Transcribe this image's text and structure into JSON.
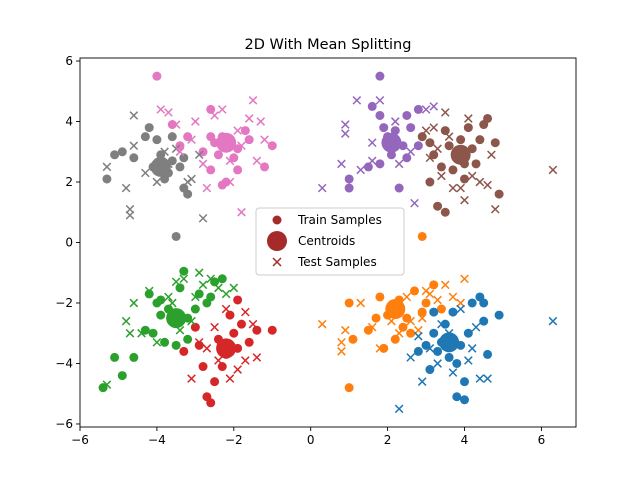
{
  "chart_data": {
    "type": "scatter",
    "title": "2D With Mean Splitting",
    "xlabel": "",
    "ylabel": "",
    "xlim": [
      -6,
      6.9
    ],
    "ylim": [
      -6.1,
      6.1
    ],
    "xticks": [
      -6,
      -4,
      -2,
      0,
      2,
      4,
      6
    ],
    "yticks": [
      -6,
      -4,
      -2,
      0,
      2,
      4,
      6
    ],
    "grid": false,
    "legend": {
      "position": "center",
      "entries": [
        "Train Samples",
        "Centroids",
        "Test Samples"
      ],
      "color": "#a52a2a"
    },
    "clusters": [
      {
        "color": "#7f7f7f",
        "centroid": [
          -3.9,
          2.5
        ],
        "train": [
          [
            -5.3,
            2.1
          ],
          [
            -5.1,
            2.9
          ],
          [
            -4.9,
            3.0
          ],
          [
            -4.6,
            2.8
          ],
          [
            -4.3,
            3.5
          ],
          [
            -4.2,
            3.8
          ],
          [
            -4.0,
            3.4
          ],
          [
            -3.9,
            2.9
          ],
          [
            -3.8,
            2.1
          ],
          [
            -3.6,
            3.5
          ],
          [
            -3.6,
            2.7
          ],
          [
            -3.4,
            2.5
          ],
          [
            -3.3,
            2.8
          ],
          [
            -3.2,
            1.6
          ],
          [
            -3.5,
            0.2
          ],
          [
            -3.3,
            1.8
          ],
          [
            -4.1,
            2.5
          ],
          [
            -3.7,
            2.3
          ]
        ],
        "test": [
          [
            -5.3,
            2.5
          ],
          [
            -4.8,
            1.8
          ],
          [
            -4.7,
            1.1
          ],
          [
            -4.7,
            0.9
          ],
          [
            -4.6,
            3.2
          ],
          [
            -4.6,
            4.2
          ],
          [
            -4.3,
            2.3
          ],
          [
            -4.0,
            2.0
          ],
          [
            -3.7,
            2.6
          ],
          [
            -3.5,
            3.1
          ],
          [
            -3.2,
            2.0
          ],
          [
            -2.9,
            2.9
          ],
          [
            -2.8,
            0.8
          ],
          [
            -3.1,
            2.1
          ],
          [
            -3.8,
            3.0
          ]
        ]
      },
      {
        "color": "#e377c2",
        "centroid": [
          -2.2,
          3.3
        ],
        "train": [
          [
            -4.0,
            5.5
          ],
          [
            -3.6,
            3.9
          ],
          [
            -3.4,
            3.2
          ],
          [
            -3.2,
            3.5
          ],
          [
            -2.8,
            3.0
          ],
          [
            -2.6,
            4.4
          ],
          [
            -2.6,
            3.5
          ],
          [
            -2.5,
            3.3
          ],
          [
            -2.4,
            2.9
          ],
          [
            -2.3,
            3.5
          ],
          [
            -2.2,
            2.0
          ],
          [
            -2.1,
            3.4
          ],
          [
            -2.0,
            2.8
          ],
          [
            -1.9,
            2.4
          ],
          [
            -1.9,
            3.1
          ],
          [
            -1.7,
            3.7
          ],
          [
            -1.2,
            2.5
          ],
          [
            -1.0,
            3.2
          ],
          [
            -2.6,
            2.4
          ],
          [
            -2.3,
            1.9
          ],
          [
            -1.6,
            3.4
          ]
        ],
        "test": [
          [
            -3.9,
            4.4
          ],
          [
            -3.7,
            4.3
          ],
          [
            -3.5,
            3.9
          ],
          [
            -3.4,
            3.0
          ],
          [
            -3.1,
            3.4
          ],
          [
            -3.0,
            4.0
          ],
          [
            -2.8,
            2.6
          ],
          [
            -2.7,
            1.8
          ],
          [
            -2.5,
            4.2
          ],
          [
            -2.3,
            4.4
          ],
          [
            -2.1,
            2.7
          ],
          [
            -1.9,
            3.7
          ],
          [
            -1.8,
            3.2
          ],
          [
            -1.6,
            4.1
          ],
          [
            -1.5,
            4.7
          ],
          [
            -1.4,
            2.7
          ],
          [
            -1.3,
            4.0
          ],
          [
            -1.2,
            3.4
          ],
          [
            -1.8,
            1.0
          ],
          [
            -2.1,
            2.0
          ]
        ]
      },
      {
        "color": "#9467bd",
        "centroid": [
          2.1,
          3.3
        ],
        "train": [
          [
            1.8,
            5.5
          ],
          [
            1.6,
            4.5
          ],
          [
            1.8,
            4.2
          ],
          [
            1.9,
            3.8
          ],
          [
            2.0,
            3.5
          ],
          [
            2.2,
            3.7
          ],
          [
            2.4,
            3.2
          ],
          [
            2.5,
            4.2
          ],
          [
            2.6,
            3.8
          ],
          [
            2.8,
            4.4
          ],
          [
            1.5,
            2.5
          ],
          [
            1.8,
            2.6
          ],
          [
            1.0,
            2.1
          ],
          [
            1.0,
            1.8
          ],
          [
            2.3,
            1.8
          ],
          [
            2.5,
            2.8
          ],
          [
            2.8,
            3.2
          ],
          [
            2.1,
            2.9
          ]
        ],
        "test": [
          [
            0.3,
            1.8
          ],
          [
            0.8,
            2.6
          ],
          [
            0.9,
            3.6
          ],
          [
            0.9,
            3.9
          ],
          [
            1.3,
            2.4
          ],
          [
            1.6,
            3.3
          ],
          [
            1.8,
            4.7
          ],
          [
            2.2,
            4.0
          ],
          [
            2.3,
            2.6
          ],
          [
            2.6,
            3.0
          ],
          [
            3.0,
            4.4
          ],
          [
            3.2,
            4.5
          ],
          [
            1.2,
            4.7
          ],
          [
            2.7,
            1.3
          ],
          [
            1.6,
            2.7
          ]
        ]
      },
      {
        "color": "#8c564b",
        "centroid": [
          3.9,
          2.9
        ],
        "train": [
          [
            2.9,
            3.5
          ],
          [
            3.1,
            3.3
          ],
          [
            3.2,
            2.9
          ],
          [
            3.4,
            2.5
          ],
          [
            3.5,
            3.7
          ],
          [
            3.6,
            3.2
          ],
          [
            3.7,
            2.4
          ],
          [
            3.8,
            3.0
          ],
          [
            3.9,
            3.4
          ],
          [
            4.0,
            2.6
          ],
          [
            4.1,
            3.8
          ],
          [
            4.2,
            3.1
          ],
          [
            4.3,
            2.6
          ],
          [
            4.4,
            3.4
          ],
          [
            4.5,
            3.9
          ],
          [
            4.6,
            4.1
          ],
          [
            4.8,
            3.3
          ],
          [
            4.9,
            1.6
          ],
          [
            3.3,
            1.2
          ],
          [
            3.5,
            1.0
          ],
          [
            4.0,
            2.1
          ],
          [
            3.1,
            2.0
          ]
        ],
        "test": [
          [
            3.0,
            3.7
          ],
          [
            3.1,
            2.8
          ],
          [
            3.3,
            3.1
          ],
          [
            3.4,
            2.2
          ],
          [
            3.6,
            3.5
          ],
          [
            3.7,
            1.8
          ],
          [
            3.9,
            1.8
          ],
          [
            4.1,
            4.1
          ],
          [
            4.2,
            2.2
          ],
          [
            4.4,
            2.0
          ],
          [
            4.6,
            1.9
          ],
          [
            4.7,
            2.9
          ],
          [
            4.8,
            1.1
          ],
          [
            6.3,
            2.4
          ],
          [
            3.5,
            4.3
          ],
          [
            3.2,
            3.8
          ],
          [
            4.0,
            1.4
          ]
        ]
      },
      {
        "color": "#2ca02c",
        "centroid": [
          -3.5,
          -2.5
        ],
        "train": [
          [
            -5.4,
            -4.8
          ],
          [
            -5.1,
            -3.8
          ],
          [
            -4.9,
            -4.4
          ],
          [
            -4.6,
            -3.8
          ],
          [
            -4.3,
            -2.9
          ],
          [
            -4.1,
            -3.0
          ],
          [
            -4.0,
            -2.0
          ],
          [
            -3.9,
            -2.4
          ],
          [
            -3.8,
            -3.3
          ],
          [
            -3.7,
            -2.2
          ],
          [
            -3.6,
            -2.6
          ],
          [
            -3.5,
            -3.4
          ],
          [
            -3.4,
            -1.5
          ],
          [
            -3.3,
            -0.95
          ],
          [
            -3.2,
            -2.5
          ],
          [
            -3.0,
            -2.2
          ],
          [
            -2.7,
            -2.0
          ],
          [
            -2.6,
            -1.8
          ],
          [
            -2.5,
            -1.3
          ],
          [
            -2.3,
            -1.2
          ],
          [
            -4.2,
            -1.7
          ],
          [
            -3.9,
            -1.9
          ],
          [
            -3.2,
            -3.2
          ],
          [
            -2.9,
            -1.7
          ]
        ],
        "test": [
          [
            -5.3,
            -4.7
          ],
          [
            -4.8,
            -2.6
          ],
          [
            -4.7,
            -3.0
          ],
          [
            -4.6,
            -2.0
          ],
          [
            -4.4,
            -3.0
          ],
          [
            -4.2,
            -1.6
          ],
          [
            -4.0,
            -3.3
          ],
          [
            -3.7,
            -1.8
          ],
          [
            -3.5,
            -1.3
          ],
          [
            -3.4,
            -2.9
          ],
          [
            -3.3,
            -1.2
          ],
          [
            -3.0,
            -1.8
          ],
          [
            -2.9,
            -1.0
          ],
          [
            -2.8,
            -1.4
          ],
          [
            -2.6,
            -1.2
          ],
          [
            -2.4,
            -1.5
          ],
          [
            -2.2,
            -1.7
          ],
          [
            -2.0,
            -1.5
          ],
          [
            -3.1,
            -2.6
          ],
          [
            -3.6,
            -2.0
          ]
        ]
      },
      {
        "color": "#d62728",
        "centroid": [
          -2.2,
          -3.5
        ],
        "train": [
          [
            -3.3,
            -3.6
          ],
          [
            -3.0,
            -2.8
          ],
          [
            -2.9,
            -3.4
          ],
          [
            -2.8,
            -4.1
          ],
          [
            -2.7,
            -5.1
          ],
          [
            -2.6,
            -5.3
          ],
          [
            -2.5,
            -4.6
          ],
          [
            -2.4,
            -3.2
          ],
          [
            -2.2,
            -3.7
          ],
          [
            -2.1,
            -2.4
          ],
          [
            -2.0,
            -3.0
          ],
          [
            -1.9,
            -1.9
          ],
          [
            -1.8,
            -2.7
          ],
          [
            -1.6,
            -3.3
          ],
          [
            -1.4,
            -2.9
          ],
          [
            -1.0,
            -2.9
          ],
          [
            -2.3,
            -4.1
          ],
          [
            -1.9,
            -3.5
          ]
        ],
        "test": [
          [
            -3.1,
            -4.5
          ],
          [
            -2.9,
            -3.3
          ],
          [
            -2.7,
            -3.5
          ],
          [
            -2.4,
            -3.9
          ],
          [
            -2.1,
            -4.5
          ],
          [
            -1.9,
            -4.2
          ],
          [
            -1.7,
            -3.9
          ],
          [
            -1.5,
            -2.7
          ],
          [
            -1.4,
            -3.8
          ],
          [
            -1.7,
            -2.3
          ],
          [
            -2.5,
            -2.8
          ],
          [
            -2.2,
            -2.2
          ]
        ]
      },
      {
        "color": "#ff7f0e",
        "centroid": [
          2.2,
          -2.2
        ],
        "train": [
          [
            1.0,
            -2.0
          ],
          [
            1.1,
            -3.2
          ],
          [
            1.5,
            -2.9
          ],
          [
            1.8,
            -1.8
          ],
          [
            1.9,
            -3.5
          ],
          [
            2.0,
            -2.4
          ],
          [
            2.1,
            -2.1
          ],
          [
            2.2,
            -3.2
          ],
          [
            2.3,
            -1.9
          ],
          [
            2.4,
            -2.8
          ],
          [
            2.5,
            -2.5
          ],
          [
            2.7,
            -1.6
          ],
          [
            2.9,
            -2.3
          ],
          [
            3.0,
            -2.0
          ],
          [
            3.2,
            -1.4
          ],
          [
            3.4,
            -2.2
          ],
          [
            2.9,
            0.2
          ],
          [
            1.0,
            -4.8
          ],
          [
            1.7,
            -2.5
          ],
          [
            2.6,
            -3.0
          ]
        ],
        "test": [
          [
            0.3,
            -2.7
          ],
          [
            0.8,
            -3.3
          ],
          [
            0.9,
            -2.9
          ],
          [
            1.3,
            -2.0
          ],
          [
            1.6,
            -2.8
          ],
          [
            1.8,
            -3.5
          ],
          [
            2.1,
            -2.6
          ],
          [
            2.3,
            -3.0
          ],
          [
            2.5,
            -1.8
          ],
          [
            2.6,
            -2.6
          ],
          [
            2.8,
            -2.9
          ],
          [
            2.9,
            -2.5
          ],
          [
            3.1,
            -1.7
          ],
          [
            3.3,
            -1.9
          ],
          [
            3.5,
            -1.4
          ],
          [
            3.7,
            -1.8
          ],
          [
            3.9,
            -2.0
          ],
          [
            4.0,
            -1.2
          ],
          [
            0.8,
            -3.6
          ],
          [
            3.0,
            -1.6
          ]
        ]
      },
      {
        "color": "#1f77b4",
        "centroid": [
          3.6,
          -3.3
        ],
        "train": [
          [
            2.8,
            -3.6
          ],
          [
            3.0,
            -3.4
          ],
          [
            3.1,
            -4.2
          ],
          [
            3.2,
            -3.0
          ],
          [
            3.3,
            -3.6
          ],
          [
            3.4,
            -3.3
          ],
          [
            3.5,
            -2.7
          ],
          [
            3.6,
            -3.8
          ],
          [
            3.7,
            -2.3
          ],
          [
            3.8,
            -5.1
          ],
          [
            3.9,
            -3.4
          ],
          [
            4.0,
            -5.2
          ],
          [
            4.0,
            -4.6
          ],
          [
            4.1,
            -3.0
          ],
          [
            4.2,
            -2.0
          ],
          [
            4.4,
            -1.8
          ],
          [
            4.5,
            -2.0
          ],
          [
            4.5,
            -2.6
          ],
          [
            4.6,
            -3.7
          ],
          [
            4.9,
            -2.4
          ],
          [
            3.2,
            -2.3
          ],
          [
            3.8,
            -4.0
          ]
        ],
        "test": [
          [
            2.3,
            -5.5
          ],
          [
            2.6,
            -3.8
          ],
          [
            2.8,
            -3.1
          ],
          [
            2.9,
            -4.6
          ],
          [
            3.1,
            -3.5
          ],
          [
            3.3,
            -4.0
          ],
          [
            3.4,
            -2.7
          ],
          [
            3.6,
            -3.0
          ],
          [
            3.9,
            -2.2
          ],
          [
            4.1,
            -3.9
          ],
          [
            4.3,
            -2.8
          ],
          [
            4.4,
            -4.5
          ],
          [
            4.6,
            -4.5
          ],
          [
            6.3,
            -2.6
          ],
          [
            3.7,
            -4.3
          ],
          [
            4.2,
            -3.5
          ]
        ]
      }
    ]
  }
}
